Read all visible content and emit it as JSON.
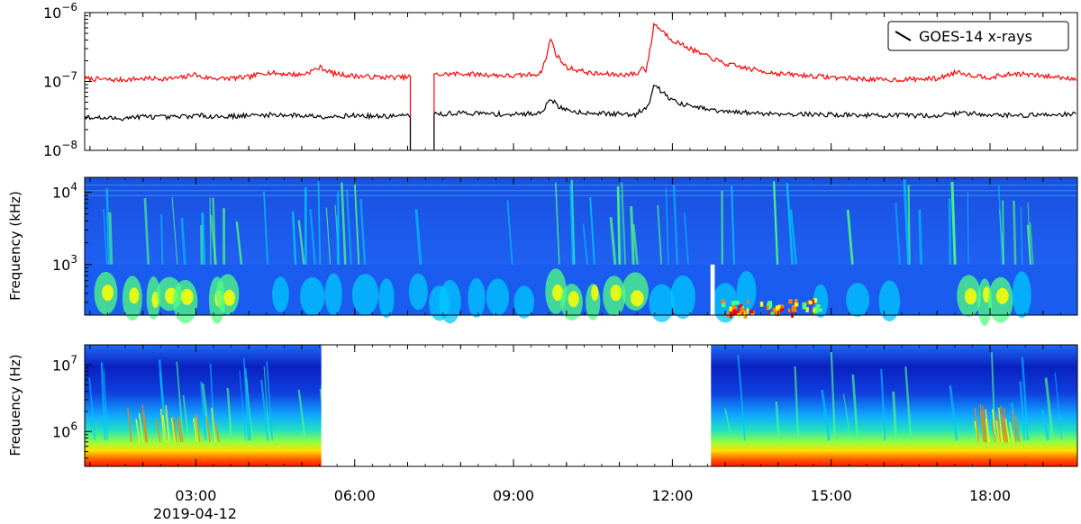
{
  "chart_data": [
    {
      "type": "line",
      "panel": "goes-xray",
      "y_scale": "log",
      "ylim": [
        1e-08,
        1e-06
      ],
      "y_ticks": [
        {
          "value": 1e-06,
          "base": "10",
          "exp": "−6"
        },
        {
          "value": 1e-07,
          "base": "10",
          "exp": "−7"
        },
        {
          "value": 1e-08,
          "base": "10",
          "exp": "−8"
        }
      ],
      "xlim_hours": [
        0.9,
        19.65
      ],
      "legend": {
        "label": "GOES-14 x-rays",
        "placement": "top-right"
      },
      "data_gap_hours": [
        7.05,
        7.5
      ],
      "series": [
        {
          "color": "#ff0000",
          "x": [
            0.9,
            1.5,
            2.0,
            2.5,
            2.8,
            2.95,
            3.1,
            3.5,
            4.0,
            4.3,
            4.6,
            5.0,
            5.35,
            5.6,
            6.0,
            6.5,
            7.0,
            7.05,
            7.5,
            8.0,
            8.5,
            9.0,
            9.5,
            9.62,
            9.7,
            9.8,
            10.0,
            10.5,
            11.0,
            11.35,
            11.45,
            11.5,
            11.6,
            11.65,
            11.8,
            12.0,
            12.5,
            13.0,
            13.5,
            14.0,
            15.0,
            16.0,
            17.0,
            17.4,
            17.6,
            18.0,
            18.5,
            19.0,
            19.65
          ],
          "y": [
            1.1e-07,
            1.05e-07,
            1.1e-07,
            1.1e-07,
            1.15e-07,
            1.3e-07,
            1.15e-07,
            1.1e-07,
            1.15e-07,
            1.35e-07,
            1.3e-07,
            1.25e-07,
            1.6e-07,
            1.3e-07,
            1.2e-07,
            1.15e-07,
            1.15e-07,
            1.2e-07,
            1.25e-07,
            1.3e-07,
            1.25e-07,
            1.2e-07,
            1.3e-07,
            2.2e-07,
            4.3e-07,
            2.5e-07,
            1.6e-07,
            1.3e-07,
            1.25e-07,
            1.3e-07,
            1.7e-07,
            1.4e-07,
            3.5e-07,
            6.9e-07,
            5.5e-07,
            4e-07,
            2.6e-07,
            1.8e-07,
            1.5e-07,
            1.3e-07,
            1.15e-07,
            1.05e-07,
            1.1e-07,
            1.4e-07,
            1.25e-07,
            1.15e-07,
            1.3e-07,
            1.2e-07,
            1.1e-07
          ]
        },
        {
          "color": "#000000",
          "x": [
            0.9,
            1.5,
            2.0,
            2.5,
            3.0,
            3.5,
            4.0,
            4.5,
            5.0,
            5.5,
            6.0,
            6.5,
            7.0,
            7.05,
            7.5,
            8.0,
            8.5,
            9.0,
            9.5,
            9.62,
            9.7,
            9.85,
            10.2,
            10.8,
            11.3,
            11.55,
            11.65,
            11.8,
            12.1,
            12.6,
            13.0,
            14.0,
            15.0,
            16.0,
            17.0,
            17.5,
            18.0,
            18.5,
            19.0,
            19.65
          ],
          "y": [
            3e-08,
            2.9e-08,
            3.1e-08,
            3e-08,
            3.2e-08,
            3.1e-08,
            3.2e-08,
            3.3e-08,
            3.2e-08,
            3.1e-08,
            3.2e-08,
            3.1e-08,
            3.2e-08,
            3.2e-08,
            3.3e-08,
            3.5e-08,
            3.4e-08,
            3.3e-08,
            3.5e-08,
            4.5e-08,
            5.8e-08,
            4.2e-08,
            3.6e-08,
            3.4e-08,
            3.3e-08,
            4.5e-08,
            9.5e-08,
            7e-08,
            4.8e-08,
            4e-08,
            3.6e-08,
            3.4e-08,
            3.3e-08,
            3.2e-08,
            3.2e-08,
            3.5e-08,
            3.3e-08,
            3.2e-08,
            3.3e-08,
            3.4e-08
          ]
        }
      ]
    },
    {
      "type": "heatmap",
      "panel": "spectrogram-khz",
      "y_scale": "log",
      "ylabel": "Frequency (kHz)",
      "ylim": [
        200,
        16000
      ],
      "y_ticks": [
        {
          "value": 1000,
          "base": "10",
          "exp": "3"
        },
        {
          "value": 10000,
          "base": "10",
          "exp": "4"
        }
      ],
      "xlim_hours": [
        0.9,
        19.65
      ],
      "colormap": [
        "#0000a0",
        "#0050ff",
        "#00c8ff",
        "#50ff80",
        "#ffff00",
        "#ff8000",
        "#ff0000"
      ],
      "data_gap_hours": [
        12.72,
        12.8
      ]
    },
    {
      "type": "heatmap",
      "panel": "spectrogram-hz",
      "y_scale": "log",
      "ylabel": "Frequency (Hz)",
      "ylim": [
        300000,
        20000000
      ],
      "y_ticks": [
        {
          "value": 1000000,
          "base": "10",
          "exp": "6"
        },
        {
          "value": 10000000,
          "base": "10",
          "exp": "7"
        }
      ],
      "xlim_hours": [
        0.9,
        19.65
      ],
      "colormap": [
        "#0000a0",
        "#0050ff",
        "#00c8ff",
        "#50ff80",
        "#ffff00",
        "#ff8000",
        "#ff0000"
      ],
      "data_gap_hours": [
        5.37,
        12.73
      ]
    }
  ],
  "x_axis": {
    "major_ticks": [
      {
        "hour": 3,
        "label": "03:00"
      },
      {
        "hour": 6,
        "label": "06:00"
      },
      {
        "hour": 9,
        "label": "09:00"
      },
      {
        "hour": 12,
        "label": "12:00"
      },
      {
        "hour": 15,
        "label": "15:00"
      },
      {
        "hour": 18,
        "label": "18:00"
      }
    ],
    "minor_ticks_hours": [
      1,
      2,
      4,
      5,
      7,
      8,
      10,
      11,
      13,
      14,
      16,
      17,
      19
    ],
    "date_label": "2019-04-12"
  }
}
